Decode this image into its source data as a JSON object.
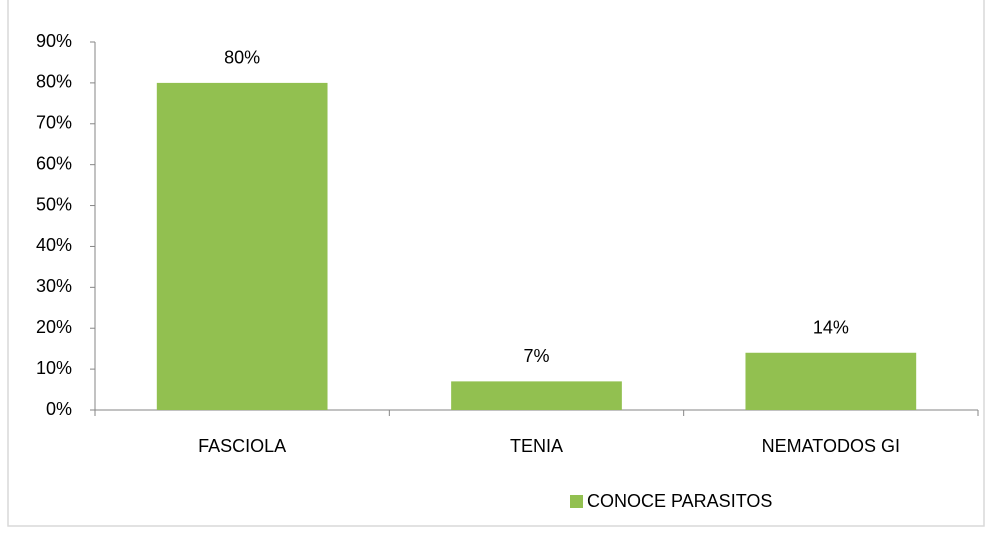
{
  "chart_data": {
    "type": "bar",
    "categories": [
      "FASCIOLA",
      "TENIA",
      "NEMATODOS GI"
    ],
    "series": [
      {
        "name": "CONOCE PARASITOS",
        "color": "#92c050",
        "values": [
          80,
          7,
          14
        ],
        "value_labels": [
          "80%",
          "7%",
          "14%"
        ]
      }
    ],
    "ylim": [
      0,
      90
    ],
    "yticks": [
      {
        "value": 0,
        "label": "0%"
      },
      {
        "value": 10,
        "label": "10%"
      },
      {
        "value": 20,
        "label": "20%"
      },
      {
        "value": 30,
        "label": "30%"
      },
      {
        "value": 40,
        "label": "40%"
      },
      {
        "value": 50,
        "label": "50%"
      },
      {
        "value": 60,
        "label": "60%"
      },
      {
        "value": 70,
        "label": "70%"
      },
      {
        "value": 80,
        "label": "80%"
      },
      {
        "value": 90,
        "label": "90%"
      }
    ],
    "grid": false,
    "legend": "bottom"
  }
}
